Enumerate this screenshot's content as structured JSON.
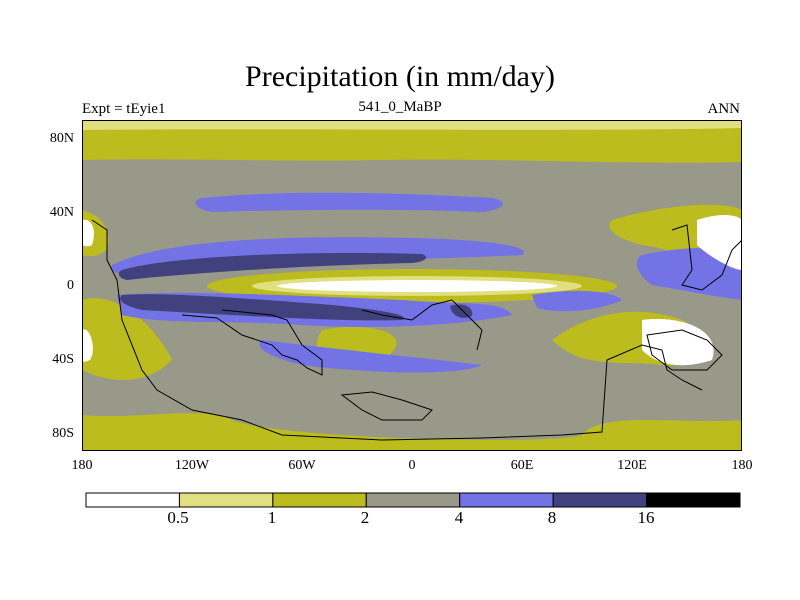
{
  "title": "Precipitation (in mm/day)",
  "subtitle_left": "Expt = tEyie1",
  "subtitle_center": "541_0_MaBP",
  "subtitle_right": "ANN",
  "y_ticks": [
    "80N",
    "40N",
    "0",
    "40S",
    "80S"
  ],
  "x_ticks": [
    "180",
    "120W",
    "60W",
    "0",
    "60E",
    "120E",
    "180"
  ],
  "colorbar": {
    "labels": [
      "0.5",
      "1",
      "2",
      "4",
      "8",
      "16"
    ],
    "colors": [
      "#ffffff",
      "#e0e080",
      "#bcbc1e",
      "#999989",
      "#7373e6",
      "#41417e",
      "#000000"
    ]
  }
}
